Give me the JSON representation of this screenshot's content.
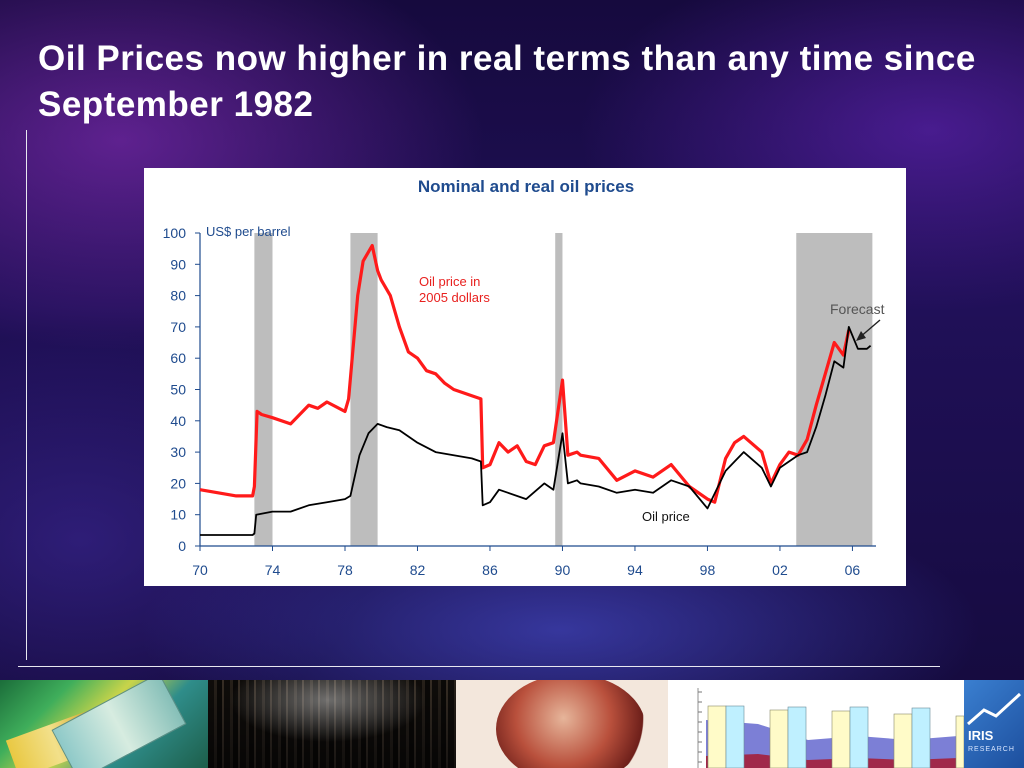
{
  "slide": {
    "title": "Oil Prices now higher in real terms than any time since September 1982"
  },
  "chart_data": {
    "type": "line",
    "title": "Nominal and real oil prices",
    "ylabel": "US$ per barrel",
    "xlabel": "",
    "xlim": [
      1970,
      2007.3
    ],
    "ylim": [
      0,
      100
    ],
    "x_ticks": [
      "70",
      "74",
      "78",
      "82",
      "86",
      "90",
      "94",
      "98",
      "02",
      "06"
    ],
    "y_ticks": [
      0,
      10,
      20,
      30,
      40,
      50,
      60,
      70,
      80,
      90,
      100
    ],
    "grid": false,
    "shaded_periods": [
      [
        1973.0,
        1974.0
      ],
      [
        1978.3,
        1979.8
      ],
      [
        1989.6,
        1990.0
      ],
      [
        2002.9,
        2007.1
      ]
    ],
    "annotations": [
      "Oil price in",
      "2005 dollars",
      "Oil price",
      "Forecast"
    ],
    "series": [
      {
        "name": "Oil price in 2005 dollars",
        "color": "#ff1a1a",
        "x": [
          1970.0,
          1971.0,
          1972.0,
          1972.9,
          1973.0,
          1973.15,
          1973.4,
          1974.0,
          1975.0,
          1976.0,
          1976.5,
          1977.0,
          1978.0,
          1978.2,
          1978.7,
          1979.0,
          1979.5,
          1979.8,
          1980.0,
          1980.5,
          1981.0,
          1981.5,
          1982.0,
          1982.5,
          1983.0,
          1983.5,
          1984.0,
          1984.5,
          1985.0,
          1985.5,
          1985.6,
          1986.0,
          1986.5,
          1987.0,
          1987.5,
          1988.0,
          1988.5,
          1989.0,
          1989.5,
          1990.0,
          1990.3,
          1990.8,
          1991.0,
          1992.0,
          1993.0,
          1994.0,
          1995.0,
          1996.0,
          1997.0,
          1998.0,
          1998.4,
          1999.0,
          1999.5,
          2000.0,
          2001.0,
          2001.5,
          2002.0,
          2002.5,
          2003.0,
          2003.5,
          2004.0,
          2004.5,
          2005.0,
          2005.5,
          2005.8
        ],
        "values": [
          18,
          17,
          16,
          16,
          19,
          43,
          42,
          41,
          39,
          45,
          44,
          46,
          43,
          47,
          80,
          91,
          96,
          88,
          85,
          80,
          70,
          62,
          60,
          56,
          55,
          52,
          50,
          49,
          48,
          47,
          25,
          26,
          33,
          30,
          32,
          27,
          26,
          32,
          33,
          53,
          29,
          30,
          29,
          28,
          21,
          24,
          22,
          26,
          19,
          15,
          14,
          28,
          33,
          35,
          30,
          20,
          26,
          30,
          29,
          34,
          45,
          55,
          65,
          61,
          69
        ]
      },
      {
        "name": "Oil price",
        "color": "#000000",
        "x": [
          1970.0,
          1972.9,
          1973.0,
          1973.1,
          1974.0,
          1975.0,
          1976.0,
          1977.0,
          1978.0,
          1978.3,
          1978.8,
          1979.3,
          1979.8,
          1980.3,
          1981.0,
          1982.0,
          1983.0,
          1984.0,
          1985.0,
          1985.5,
          1985.6,
          1986.0,
          1986.5,
          1987.0,
          1988.0,
          1989.0,
          1989.5,
          1990.0,
          1990.3,
          1990.8,
          1991.0,
          1992.0,
          1993.0,
          1994.0,
          1995.0,
          1996.0,
          1997.0,
          1998.0,
          1999.0,
          1999.5,
          2000.0,
          2001.0,
          2001.5,
          2002.0,
          2003.0,
          2003.5,
          2004.0,
          2004.5,
          2005.0,
          2005.5,
          2005.8,
          2006.3,
          2006.8,
          2007.0
        ],
        "values": [
          3.5,
          3.5,
          4,
          10,
          11,
          11,
          13,
          14,
          15,
          16,
          29,
          36,
          39,
          38,
          37,
          33,
          30,
          29,
          28,
          27,
          13,
          14,
          18,
          17,
          15,
          20,
          18,
          36,
          20,
          21,
          20,
          19,
          17,
          18,
          17,
          21,
          19,
          12,
          24,
          27,
          30,
          25,
          19,
          25,
          29,
          30,
          38,
          48,
          59,
          57,
          70,
          63,
          63,
          64
        ]
      }
    ]
  },
  "footer": {
    "logo_text": "IRIS",
    "logo_subtext": "RESEARCH"
  }
}
